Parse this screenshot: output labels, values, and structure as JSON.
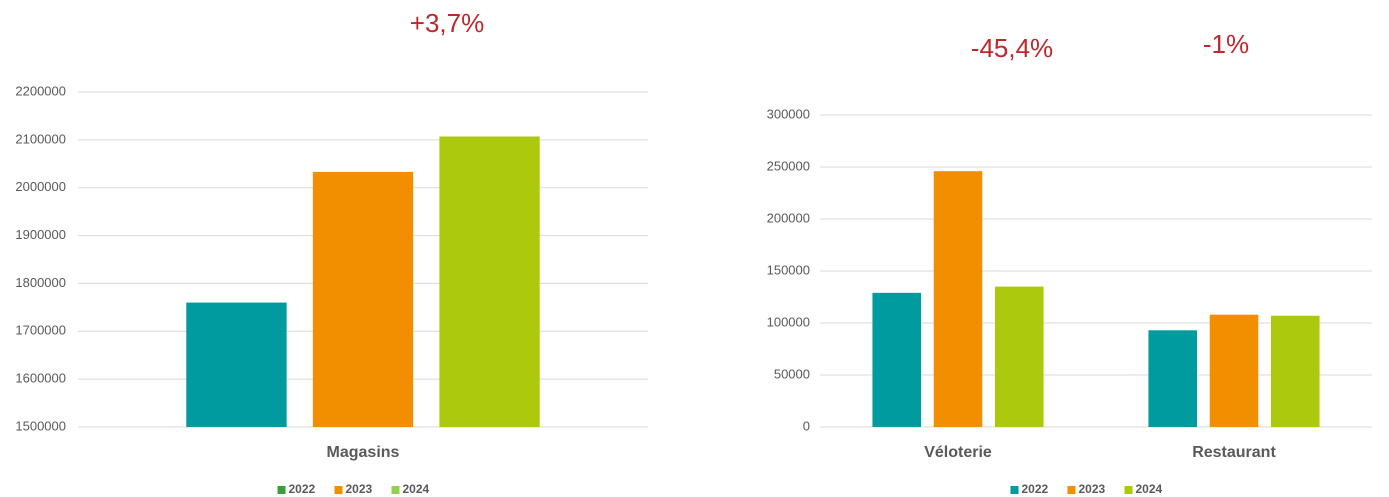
{
  "chart_data": [
    {
      "type": "bar",
      "annotations": [
        "+3,7%"
      ],
      "categories": [
        "Magasins"
      ],
      "series": [
        {
          "name": "2022",
          "color": "#009b9f",
          "legend_color": "#3a9e3a",
          "values": [
            1760000
          ]
        },
        {
          "name": "2023",
          "color": "#f18f00",
          "legend_color": "#f18f00",
          "values": [
            2033000
          ]
        },
        {
          "name": "2024",
          "color": "#adc90e",
          "legend_color": "#92d050",
          "values": [
            2107000
          ]
        }
      ],
      "ylim": [
        1500000,
        2200000
      ],
      "yticks": [
        1500000,
        1600000,
        1700000,
        1800000,
        1900000,
        2000000,
        2100000,
        2200000
      ],
      "grid": true,
      "legend": "bottom"
    },
    {
      "type": "bar",
      "annotations": [
        "-45,4%",
        "-1%"
      ],
      "categories": [
        "Véloterie",
        "Restaurant"
      ],
      "series": [
        {
          "name": "2022",
          "color": "#009b9f",
          "legend_color": "#009b9f",
          "values": [
            129000,
            93000
          ]
        },
        {
          "name": "2023",
          "color": "#f18f00",
          "legend_color": "#f18f00",
          "values": [
            246000,
            108000
          ]
        },
        {
          "name": "2024",
          "color": "#adc90e",
          "legend_color": "#adc90e",
          "values": [
            135000,
            107000
          ]
        }
      ],
      "ylim": [
        0,
        300000
      ],
      "yticks": [
        0,
        50000,
        100000,
        150000,
        200000,
        250000,
        300000
      ],
      "grid": true,
      "legend": "bottom"
    }
  ]
}
